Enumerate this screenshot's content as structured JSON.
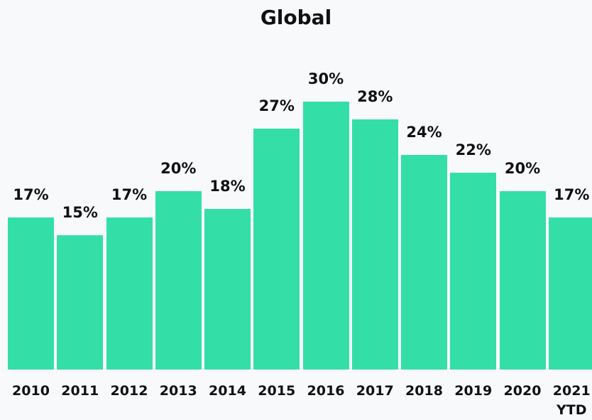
{
  "chart_data": {
    "type": "bar",
    "title": "Global",
    "categories": [
      "2010",
      "2011",
      "2012",
      "2013",
      "2014",
      "2015",
      "2016",
      "2017",
      "2018",
      "2019",
      "2020",
      "2021 YTD"
    ],
    "values": [
      17,
      15,
      17,
      20,
      18,
      27,
      30,
      28,
      24,
      22,
      20,
      17
    ],
    "value_labels": [
      "17%",
      "15%",
      "17%",
      "20%",
      "18%",
      "27%",
      "30%",
      "28%",
      "24%",
      "22%",
      "20%",
      "17%"
    ],
    "color": "#34dfa7"
  }
}
